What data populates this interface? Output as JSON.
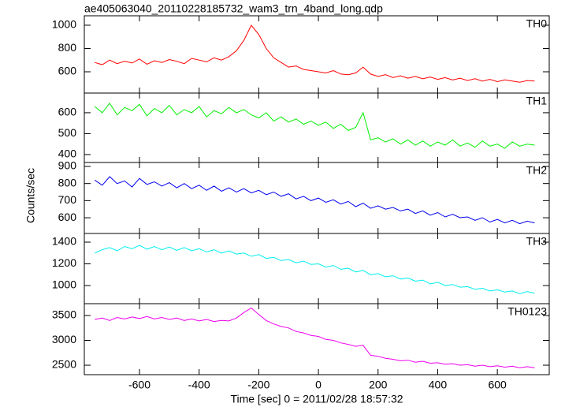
{
  "chart_data": {
    "type": "line",
    "title": "ae405063040_20110228185732_wam3_trn_4band_long.qdp",
    "xlabel": "Time [sec] 0 = 2011/02/28 18:57:32",
    "ylabel": "Counts/sec",
    "xlim": [
      -785,
      774
    ],
    "xticks": [
      -600,
      -400,
      -200,
      0,
      200,
      400,
      600
    ],
    "x": [
      -750,
      -725,
      -700,
      -675,
      -650,
      -625,
      -600,
      -575,
      -550,
      -525,
      -500,
      -475,
      -450,
      -425,
      -400,
      -375,
      -350,
      -325,
      -300,
      -275,
      -250,
      -225,
      -200,
      -175,
      -150,
      -125,
      -100,
      -75,
      -50,
      -25,
      0,
      25,
      50,
      75,
      100,
      125,
      150,
      175,
      200,
      225,
      250,
      275,
      300,
      325,
      350,
      375,
      400,
      425,
      450,
      475,
      500,
      525,
      550,
      575,
      600,
      625,
      650,
      675,
      700,
      725
    ],
    "panels": [
      {
        "label": "TH0",
        "color": "#ff0000",
        "ylim": [
          417,
          1081
        ],
        "yticks": [
          600,
          800,
          1000
        ],
        "values": [
          680,
          660,
          700,
          670,
          690,
          675,
          710,
          665,
          695,
          680,
          705,
          690,
          670,
          715,
          700,
          685,
          720,
          700,
          730,
          780,
          870,
          1000,
          920,
          800,
          720,
          680,
          640,
          650,
          620,
          610,
          600,
          590,
          610,
          580,
          575,
          590,
          640,
          580,
          560,
          575,
          550,
          565,
          545,
          560,
          540,
          555,
          535,
          550,
          530,
          545,
          525,
          540,
          520,
          535,
          515,
          530,
          520,
          510,
          525,
          520
        ]
      },
      {
        "label": "TH1",
        "color": "#00ee00",
        "ylim": [
          362,
          694
        ],
        "yticks": [
          400,
          500,
          600
        ],
        "values": [
          630,
          600,
          645,
          590,
          625,
          610,
          640,
          585,
          620,
          600,
          635,
          590,
          615,
          600,
          630,
          580,
          610,
          595,
          625,
          600,
          615,
          590,
          575,
          600,
          560,
          580,
          555,
          570,
          545,
          560,
          540,
          555,
          525,
          545,
          515,
          530,
          600,
          470,
          480,
          460,
          475,
          450,
          470,
          445,
          465,
          440,
          460,
          445,
          470,
          440,
          455,
          435,
          465,
          440,
          450,
          430,
          460,
          440,
          450,
          445
        ]
      },
      {
        "label": "TH2",
        "color": "#0000ee",
        "ylim": [
          508,
          923
        ],
        "yticks": [
          600,
          700,
          800,
          900
        ],
        "values": [
          820,
          790,
          840,
          800,
          815,
          780,
          830,
          795,
          810,
          785,
          805,
          775,
          800,
          770,
          790,
          760,
          785,
          755,
          775,
          750,
          770,
          745,
          760,
          735,
          750,
          725,
          740,
          710,
          725,
          700,
          715,
          690,
          705,
          680,
          695,
          665,
          685,
          655,
          670,
          650,
          660,
          640,
          650,
          625,
          640,
          615,
          630,
          605,
          620,
          600,
          605,
          585,
          600,
          575,
          590,
          570,
          585,
          565,
          580,
          570
        ]
      },
      {
        "label": "TH3",
        "color": "#00eeee",
        "ylim": [
          833,
          1480
        ],
        "yticks": [
          1000,
          1200,
          1400
        ],
        "values": [
          1300,
          1330,
          1350,
          1320,
          1360,
          1340,
          1370,
          1335,
          1360,
          1330,
          1355,
          1325,
          1350,
          1320,
          1340,
          1310,
          1330,
          1300,
          1320,
          1290,
          1300,
          1270,
          1285,
          1250,
          1260,
          1230,
          1240,
          1210,
          1225,
          1195,
          1200,
          1170,
          1185,
          1150,
          1160,
          1125,
          1140,
          1100,
          1110,
          1080,
          1090,
          1060,
          1070,
          1040,
          1050,
          1015,
          1030,
          1000,
          1010,
          985,
          990,
          965,
          975,
          950,
          960,
          940,
          950,
          925,
          945,
          930
        ]
      },
      {
        "label": "TH0123",
        "color": "#ee00ee",
        "ylim": [
          2310,
          3738
        ],
        "yticks": [
          2500,
          3000,
          3500
        ],
        "values": [
          3420,
          3450,
          3400,
          3460,
          3430,
          3470,
          3440,
          3480,
          3430,
          3460,
          3420,
          3450,
          3400,
          3430,
          3390,
          3420,
          3380,
          3400,
          3390,
          3450,
          3560,
          3650,
          3520,
          3400,
          3330,
          3280,
          3250,
          3180,
          3150,
          3100,
          3080,
          3020,
          3000,
          2950,
          2920,
          2880,
          2900,
          2700,
          2680,
          2640,
          2620,
          2590,
          2600,
          2560,
          2580,
          2540,
          2550,
          2520,
          2530,
          2500,
          2510,
          2480,
          2500,
          2470,
          2490,
          2460,
          2480,
          2450,
          2470,
          2450
        ]
      }
    ]
  }
}
